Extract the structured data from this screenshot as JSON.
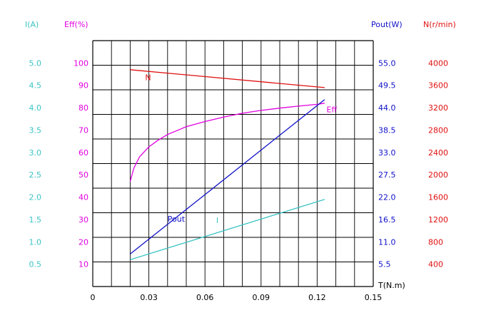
{
  "chart_data": {
    "type": "line",
    "grid": true,
    "x": {
      "label": "T(N.m)",
      "ticks": [
        0,
        0.03,
        0.06,
        0.09,
        0.12,
        0.15
      ],
      "tick_labels": [
        "0",
        "0.03",
        "0.06",
        "0.09",
        "0.12",
        "0.15"
      ],
      "range": [
        0,
        0.15
      ]
    },
    "axes": [
      {
        "id": "I",
        "label": "I(A)",
        "side": "left-outer",
        "color": "#3cc3c3",
        "range": [
          0,
          5.5
        ],
        "tick_labels": [
          "0.5",
          "1.0",
          "1.5",
          "2.0",
          "2.5",
          "3.0",
          "3.5",
          "4.0",
          "4.5",
          "5.0"
        ],
        "tick_values": [
          0.5,
          1.0,
          1.5,
          2.0,
          2.5,
          3.0,
          3.5,
          4.0,
          4.5,
          5.0
        ]
      },
      {
        "id": "Eff",
        "label": "Eff(%)",
        "side": "left-inner",
        "color": "#e000e0",
        "range": [
          0,
          110
        ],
        "tick_labels": [
          "10",
          "20",
          "30",
          "40",
          "50",
          "60",
          "70",
          "80",
          "90",
          "100"
        ],
        "tick_values": [
          10,
          20,
          30,
          40,
          50,
          60,
          70,
          80,
          90,
          100
        ]
      },
      {
        "id": "Pout",
        "label": "Pout(W)",
        "side": "right-inner",
        "color": "#1010c8",
        "range": [
          0,
          60.5
        ],
        "tick_labels": [
          "5.5",
          "11.0",
          "16.5",
          "22.0",
          "27.5",
          "33.0",
          "38.5",
          "44.0",
          "49.5",
          "55.0"
        ],
        "tick_values": [
          5.5,
          11.0,
          16.5,
          22.0,
          27.5,
          33.0,
          38.5,
          44.0,
          49.5,
          55.0
        ]
      },
      {
        "id": "N",
        "label": "N(r/min)",
        "side": "right-outer",
        "color": "#e01010",
        "range": [
          0,
          4400
        ],
        "tick_labels": [
          "400",
          "800",
          "1200",
          "1600",
          "2000",
          "2400",
          "2800",
          "3200",
          "3600",
          "4000"
        ],
        "tick_values": [
          400,
          800,
          1200,
          1600,
          2000,
          2400,
          2800,
          3200,
          3600,
          4000
        ]
      }
    ],
    "series": [
      {
        "name": "N",
        "axis": "N",
        "color": "#e01010",
        "x": [
          0.02,
          0.124
        ],
        "y": [
          3880,
          3560
        ],
        "label_at": [
          0.028,
          3690
        ]
      },
      {
        "name": "Eff",
        "axis": "Eff",
        "color": "#e000e0",
        "x": [
          0.02,
          0.022,
          0.025,
          0.03,
          0.035,
          0.04,
          0.05,
          0.06,
          0.07,
          0.08,
          0.09,
          0.1,
          0.11,
          0.12,
          0.124
        ],
        "y": [
          47,
          53,
          58,
          62.5,
          65.5,
          68,
          71.5,
          73.8,
          75.8,
          77.5,
          78.8,
          79.8,
          80.7,
          81.5,
          82
        ],
        "label_at": [
          0.125,
          78
        ]
      },
      {
        "name": "Pout",
        "axis": "Pout",
        "color": "#1010c8",
        "x": [
          0.02,
          0.124
        ],
        "y": [
          8.0,
          46.0
        ],
        "label_at": [
          0.04,
          16
        ]
      },
      {
        "name": "I",
        "axis": "I",
        "color": "#3cc3c3",
        "x": [
          0.02,
          0.124
        ],
        "y": [
          0.6,
          1.95
        ],
        "label_at": [
          0.066,
          1.42
        ]
      }
    ]
  }
}
